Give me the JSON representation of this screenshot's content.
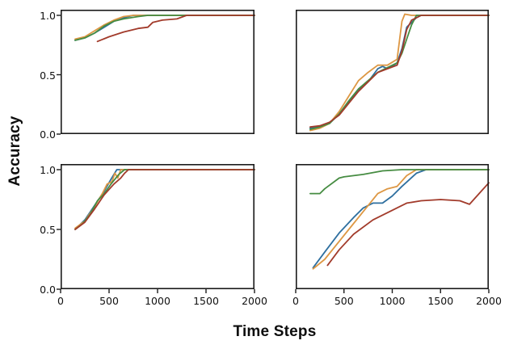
{
  "figure": {
    "ylabel": "Accuracy",
    "xlabel": "Time Steps",
    "background": "#ffffff",
    "spine_color": "#1b1b1b"
  },
  "axes": {
    "y_ticks": [
      "1.0",
      "0.5",
      "0.0"
    ],
    "y_tick_values": [
      1.0,
      0.5,
      0.0
    ],
    "x_ticks": [
      "0",
      "500",
      "1000",
      "1500",
      "2000"
    ],
    "x_tick_values": [
      0,
      500,
      1000,
      1500,
      2000
    ]
  },
  "chart_data": [
    {
      "type": "line",
      "position": "top-left",
      "xlim": [
        0,
        2000
      ],
      "ylim": [
        0,
        1.05
      ],
      "xlabel": "Time Steps",
      "ylabel": "Accuracy",
      "grid": false,
      "legend": "none",
      "series": [
        {
          "name": "blue",
          "color": "#2e6f9f",
          "x": [
            150,
            250,
            350,
            450,
            550,
            650,
            750,
            850,
            2000
          ],
          "y": [
            0.79,
            0.81,
            0.85,
            0.9,
            0.95,
            0.98,
            1.0,
            1.0,
            1.0
          ]
        },
        {
          "name": "orange",
          "color": "#dd9743",
          "x": [
            150,
            250,
            350,
            450,
            550,
            650,
            750,
            2000
          ],
          "y": [
            0.8,
            0.82,
            0.87,
            0.92,
            0.96,
            0.99,
            1.0,
            1.0
          ]
        },
        {
          "name": "green",
          "color": "#468c42",
          "x": [
            150,
            250,
            350,
            450,
            550,
            650,
            800,
            900,
            2000
          ],
          "y": [
            0.79,
            0.81,
            0.85,
            0.91,
            0.95,
            0.97,
            0.99,
            1.0,
            1.0
          ]
        },
        {
          "name": "red",
          "color": "#a23b2b",
          "x": [
            380,
            500,
            650,
            800,
            900,
            950,
            1050,
            1200,
            1300,
            2000
          ],
          "y": [
            0.78,
            0.82,
            0.86,
            0.89,
            0.9,
            0.94,
            0.96,
            0.97,
            1.0,
            1.0
          ]
        }
      ]
    },
    {
      "type": "line",
      "position": "top-right",
      "xlim": [
        0,
        2000
      ],
      "ylim": [
        0,
        1.05
      ],
      "xlabel": "Time Steps",
      "ylabel": "Accuracy",
      "grid": false,
      "legend": "none",
      "series": [
        {
          "name": "blue",
          "color": "#2e6f9f",
          "x": [
            150,
            250,
            350,
            450,
            550,
            650,
            750,
            850,
            900,
            950,
            1000,
            1050,
            1100,
            1150,
            1250,
            1300,
            2000
          ],
          "y": [
            0.05,
            0.06,
            0.09,
            0.17,
            0.27,
            0.37,
            0.44,
            0.55,
            0.57,
            0.55,
            0.57,
            0.6,
            0.72,
            0.9,
            0.98,
            1.0,
            1.0
          ]
        },
        {
          "name": "orange",
          "color": "#dd9743",
          "x": [
            150,
            250,
            350,
            450,
            550,
            650,
            750,
            850,
            950,
            1050,
            1100,
            1130,
            1200,
            2000
          ],
          "y": [
            0.03,
            0.05,
            0.09,
            0.19,
            0.32,
            0.45,
            0.52,
            0.58,
            0.58,
            0.63,
            0.95,
            1.01,
            1.0,
            1.0
          ]
        },
        {
          "name": "green",
          "color": "#468c42",
          "x": [
            150,
            250,
            350,
            450,
            550,
            650,
            750,
            850,
            950,
            1050,
            1100,
            1150,
            1200,
            1250,
            2000
          ],
          "y": [
            0.04,
            0.06,
            0.09,
            0.17,
            0.28,
            0.38,
            0.45,
            0.52,
            0.56,
            0.6,
            0.68,
            0.8,
            0.92,
            1.0,
            1.0
          ]
        },
        {
          "name": "red",
          "color": "#a23b2b",
          "x": [
            150,
            250,
            350,
            450,
            550,
            650,
            750,
            850,
            950,
            1050,
            1100,
            1150,
            1200,
            1300,
            2000
          ],
          "y": [
            0.06,
            0.07,
            0.1,
            0.16,
            0.26,
            0.36,
            0.44,
            0.52,
            0.55,
            0.58,
            0.7,
            0.88,
            0.96,
            1.0,
            1.0
          ]
        }
      ]
    },
    {
      "type": "line",
      "position": "bottom-left",
      "xlim": [
        0,
        2000
      ],
      "ylim": [
        0,
        1.05
      ],
      "xlabel": "Time Steps",
      "ylabel": "Accuracy",
      "grid": false,
      "legend": "none",
      "series": [
        {
          "name": "blue",
          "color": "#2e6f9f",
          "x": [
            150,
            250,
            350,
            450,
            520,
            580,
            2000
          ],
          "y": [
            0.5,
            0.58,
            0.7,
            0.82,
            0.92,
            1.0,
            1.0
          ]
        },
        {
          "name": "orange",
          "color": "#dd9743",
          "x": [
            150,
            250,
            350,
            430,
            480,
            530,
            560,
            590,
            620,
            650,
            2000
          ],
          "y": [
            0.51,
            0.57,
            0.69,
            0.8,
            0.88,
            0.9,
            0.97,
            0.93,
            1.0,
            1.0,
            1.0
          ]
        },
        {
          "name": "green",
          "color": "#468c42",
          "x": [
            150,
            230,
            300,
            380,
            450,
            520,
            600,
            660,
            2000
          ],
          "y": [
            0.5,
            0.55,
            0.62,
            0.74,
            0.8,
            0.88,
            0.96,
            1.0,
            1.0
          ]
        },
        {
          "name": "red",
          "color": "#a23b2b",
          "x": [
            150,
            250,
            350,
            450,
            550,
            620,
            660,
            700,
            2000
          ],
          "y": [
            0.5,
            0.56,
            0.67,
            0.79,
            0.88,
            0.93,
            0.97,
            1.0,
            1.0
          ]
        }
      ]
    },
    {
      "type": "line",
      "position": "bottom-right",
      "xlim": [
        0,
        2000
      ],
      "ylim": [
        0,
        1.05
      ],
      "xlabel": "Time Steps",
      "ylabel": "Accuracy",
      "grid": false,
      "legend": "none",
      "series": [
        {
          "name": "blue",
          "color": "#2e6f9f",
          "x": [
            180,
            300,
            450,
            600,
            700,
            800,
            900,
            1000,
            1100,
            1250,
            1350,
            2000
          ],
          "y": [
            0.18,
            0.31,
            0.47,
            0.6,
            0.68,
            0.72,
            0.72,
            0.78,
            0.86,
            0.97,
            1.0,
            1.0
          ]
        },
        {
          "name": "orange",
          "color": "#dd9743",
          "x": [
            180,
            300,
            450,
            550,
            650,
            750,
            850,
            950,
            1050,
            1150,
            1250,
            1300,
            2000
          ],
          "y": [
            0.17,
            0.25,
            0.4,
            0.5,
            0.6,
            0.7,
            0.8,
            0.84,
            0.86,
            0.95,
            1.0,
            1.0,
            1.0
          ]
        },
        {
          "name": "green",
          "color": "#468c42",
          "x": [
            150,
            250,
            300,
            450,
            500,
            700,
            900,
            1100,
            2000
          ],
          "y": [
            0.8,
            0.8,
            0.84,
            0.93,
            0.94,
            0.96,
            0.99,
            1.0,
            1.0
          ]
        },
        {
          "name": "red",
          "color": "#a23b2b",
          "x": [
            330,
            450,
            600,
            800,
            1000,
            1150,
            1300,
            1500,
            1700,
            1800,
            1900,
            2000
          ],
          "y": [
            0.2,
            0.33,
            0.46,
            0.58,
            0.66,
            0.72,
            0.74,
            0.75,
            0.74,
            0.71,
            0.8,
            0.89
          ]
        }
      ]
    }
  ]
}
